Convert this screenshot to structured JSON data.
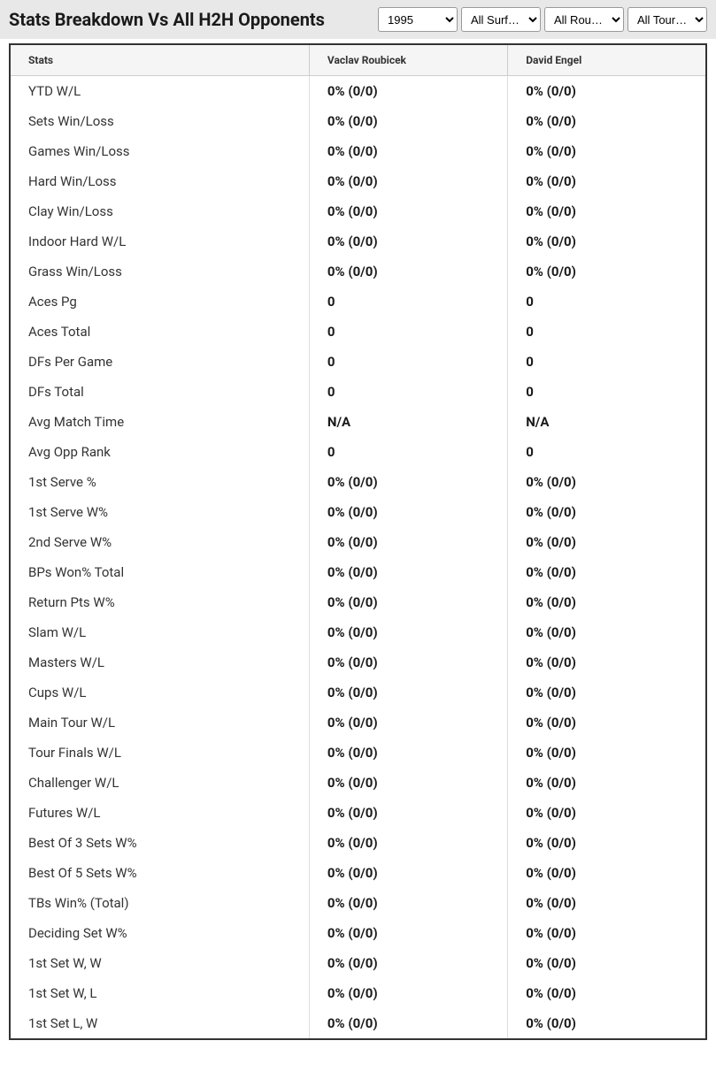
{
  "header": {
    "title": "Stats Breakdown Vs All H2H Opponents"
  },
  "filters": {
    "year": {
      "selected": "1995",
      "options": [
        "1995"
      ]
    },
    "surface": {
      "selected": "All Surf…",
      "options": [
        "All Surf…"
      ]
    },
    "round": {
      "selected": "All Rou…",
      "options": [
        "All Rou…"
      ]
    },
    "tour": {
      "selected": "All Tour…",
      "options": [
        "All Tour…"
      ]
    }
  },
  "table": {
    "columns": [
      "Stats",
      "Vaclav Roubicek",
      "David Engel"
    ],
    "rows": [
      {
        "label": "YTD W/L",
        "p1": "0% (0/0)",
        "p2": "0% (0/0)"
      },
      {
        "label": "Sets Win/Loss",
        "p1": "0% (0/0)",
        "p2": "0% (0/0)"
      },
      {
        "label": "Games Win/Loss",
        "p1": "0% (0/0)",
        "p2": "0% (0/0)"
      },
      {
        "label": "Hard Win/Loss",
        "p1": "0% (0/0)",
        "p2": "0% (0/0)"
      },
      {
        "label": "Clay Win/Loss",
        "p1": "0% (0/0)",
        "p2": "0% (0/0)"
      },
      {
        "label": "Indoor Hard W/L",
        "p1": "0% (0/0)",
        "p2": "0% (0/0)"
      },
      {
        "label": "Grass Win/Loss",
        "p1": "0% (0/0)",
        "p2": "0% (0/0)"
      },
      {
        "label": "Aces Pg",
        "p1": "0",
        "p2": "0"
      },
      {
        "label": "Aces Total",
        "p1": "0",
        "p2": "0"
      },
      {
        "label": "DFs Per Game",
        "p1": "0",
        "p2": "0"
      },
      {
        "label": "DFs Total",
        "p1": "0",
        "p2": "0"
      },
      {
        "label": "Avg Match Time",
        "p1": "N/A",
        "p2": "N/A"
      },
      {
        "label": "Avg Opp Rank",
        "p1": "0",
        "p2": "0"
      },
      {
        "label": "1st Serve %",
        "p1": "0% (0/0)",
        "p2": "0% (0/0)"
      },
      {
        "label": "1st Serve W%",
        "p1": "0% (0/0)",
        "p2": "0% (0/0)"
      },
      {
        "label": "2nd Serve W%",
        "p1": "0% (0/0)",
        "p2": "0% (0/0)"
      },
      {
        "label": "BPs Won% Total",
        "p1": "0% (0/0)",
        "p2": "0% (0/0)"
      },
      {
        "label": "Return Pts W%",
        "p1": "0% (0/0)",
        "p2": "0% (0/0)"
      },
      {
        "label": "Slam W/L",
        "p1": "0% (0/0)",
        "p2": "0% (0/0)"
      },
      {
        "label": "Masters W/L",
        "p1": "0% (0/0)",
        "p2": "0% (0/0)"
      },
      {
        "label": "Cups W/L",
        "p1": "0% (0/0)",
        "p2": "0% (0/0)"
      },
      {
        "label": "Main Tour W/L",
        "p1": "0% (0/0)",
        "p2": "0% (0/0)"
      },
      {
        "label": "Tour Finals W/L",
        "p1": "0% (0/0)",
        "p2": "0% (0/0)"
      },
      {
        "label": "Challenger W/L",
        "p1": "0% (0/0)",
        "p2": "0% (0/0)"
      },
      {
        "label": "Futures W/L",
        "p1": "0% (0/0)",
        "p2": "0% (0/0)"
      },
      {
        "label": "Best Of 3 Sets W%",
        "p1": "0% (0/0)",
        "p2": "0% (0/0)"
      },
      {
        "label": "Best Of 5 Sets W%",
        "p1": "0% (0/0)",
        "p2": "0% (0/0)"
      },
      {
        "label": "TBs Win% (Total)",
        "p1": "0% (0/0)",
        "p2": "0% (0/0)"
      },
      {
        "label": "Deciding Set W%",
        "p1": "0% (0/0)",
        "p2": "0% (0/0)"
      },
      {
        "label": "1st Set W, W",
        "p1": "0% (0/0)",
        "p2": "0% (0/0)"
      },
      {
        "label": "1st Set W, L",
        "p1": "0% (0/0)",
        "p2": "0% (0/0)"
      },
      {
        "label": "1st Set L, W",
        "p1": "0% (0/0)",
        "p2": "0% (0/0)"
      }
    ]
  },
  "styling": {
    "header_bg": "#e8e8e8",
    "table_border": "#333333",
    "header_row_bg": "#f5f5f5",
    "cell_border": "#dddddd",
    "text_color": "#2a2a2a",
    "title_fontsize": 20,
    "header_fontsize": 12,
    "cell_fontsize": 15
  }
}
